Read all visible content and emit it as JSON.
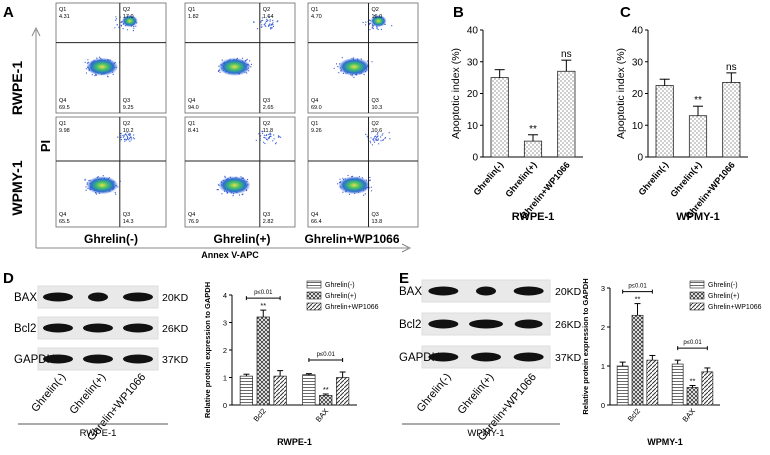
{
  "panel_labels": {
    "A": "A",
    "B": "B",
    "C": "C",
    "D": "D",
    "E": "E"
  },
  "panel_a": {
    "row_labels": [
      "RWPE-1",
      "WPMY-1"
    ],
    "col_labels": [
      "Ghrelin(-)",
      "Ghrelin(+)",
      "Ghrelin+WP1066"
    ],
    "y_axis": "PI",
    "x_axis": "Annex V-APC",
    "quadrant_names": [
      "Q1",
      "Q2",
      "Q3",
      "Q4"
    ],
    "plots": [
      {
        "q1": "4.31",
        "q2": "17.0",
        "q3": "9.25",
        "q4": "69.5"
      },
      {
        "q1": "1.82",
        "q2": "1.64",
        "q3": "2.65",
        "q4": "94.0"
      },
      {
        "q1": "4.70",
        "q2": "16.0",
        "q3": "10.3",
        "q4": "69.0"
      },
      {
        "q1": "9.98",
        "q2": "10.2",
        "q3": "14.3",
        "q4": "65.5"
      },
      {
        "q1": "8.41",
        "q2": "11.8",
        "q3": "2.82",
        "q4": "76.9"
      },
      {
        "q1": "9.26",
        "q2": "10.6",
        "q3": "13.8",
        "q4": "66.4"
      }
    ]
  },
  "blot_d": {
    "rows": [
      "BAX",
      "Bcl2",
      "GAPDH"
    ],
    "sizes": [
      "20KD",
      "26KD",
      "37KD"
    ],
    "lanes": [
      "Ghrelin(-)",
      "Ghrelin(+)",
      "Ghrelin+WP1066"
    ],
    "cell_line": "RWPE-1"
  },
  "blot_e": {
    "rows": [
      "BAX",
      "Bcl2",
      "GAPDH"
    ],
    "sizes": [
      "20KD",
      "26KD",
      "37KD"
    ],
    "lanes": [
      "Ghrelin(-)",
      "Ghrelin(+)",
      "Ghrelin+WP1066"
    ],
    "cell_line": "WPMY-1"
  },
  "chart_data": [
    {
      "type": "bar",
      "panel": "B",
      "categories": [
        "Ghrelin(-)",
        "Ghrelin(+)",
        "Ghrelin+WP1066"
      ],
      "values": [
        25,
        5,
        27
      ],
      "errors": [
        2.5,
        2,
        3.5
      ],
      "annotations": [
        "",
        "**",
        "ns"
      ],
      "ylabel": "Apoptotic index (%)",
      "xlabel": "RWPE-1",
      "ylim": [
        0,
        40
      ],
      "yticks": [
        "0",
        "10",
        "20",
        "30",
        "40"
      ]
    },
    {
      "type": "bar",
      "panel": "C",
      "categories": [
        "Ghrelin(-)",
        "Ghrelin(+)",
        "Ghrelin+WP1066"
      ],
      "values": [
        22.5,
        13,
        23.5
      ],
      "errors": [
        2,
        3,
        3
      ],
      "annotations": [
        "",
        "**",
        "ns"
      ],
      "ylabel": "Apoptotic index (%)",
      "xlabel": "WPMY-1",
      "ylim": [
        0,
        40
      ],
      "yticks": [
        "0",
        "10",
        "20",
        "30",
        "40"
      ]
    },
    {
      "type": "bar",
      "panel": "D",
      "categories": [
        "Bcl2",
        "BAX"
      ],
      "series": [
        {
          "name": "Ghrelin(-)",
          "values": [
            1.05,
            1.1
          ],
          "errors": [
            0.07,
            0.04
          ]
        },
        {
          "name": "Ghrelin(+)",
          "values": [
            3.2,
            0.35
          ],
          "errors": [
            0.25,
            0.05
          ]
        },
        {
          "name": "Ghrelin+WP1066",
          "values": [
            1.05,
            1.0
          ],
          "errors": [
            0.2,
            0.2
          ]
        }
      ],
      "annotations": [
        "**",
        "**"
      ],
      "pvalue_labels": [
        "p≤0.01",
        "p≤0.01"
      ],
      "ylabel": "Relative protein expression to GAPDH",
      "xlabel": "RWPE-1",
      "ylim": [
        0,
        4
      ],
      "yticks": [
        "0",
        "1",
        "2",
        "3",
        "4"
      ]
    },
    {
      "type": "bar",
      "panel": "E",
      "categories": [
        "Bcl2",
        "BAX"
      ],
      "series": [
        {
          "name": "Ghrelin(-)",
          "values": [
            1.0,
            1.05
          ],
          "errors": [
            0.1,
            0.1
          ]
        },
        {
          "name": "Ghrelin(+)",
          "values": [
            2.3,
            0.45
          ],
          "errors": [
            0.3,
            0.05
          ]
        },
        {
          "name": "Ghrelin+WP1066",
          "values": [
            1.15,
            0.85
          ],
          "errors": [
            0.12,
            0.1
          ]
        }
      ],
      "annotations": [
        "**",
        "**"
      ],
      "pvalue_labels": [
        "p≤0.01",
        "p≤0.01"
      ],
      "ylabel": "Relative protein expression to GAPDH",
      "xlabel": "WPMY-1",
      "ylim": [
        0,
        3
      ],
      "yticks": [
        "0",
        "1",
        "2",
        "3"
      ]
    }
  ]
}
